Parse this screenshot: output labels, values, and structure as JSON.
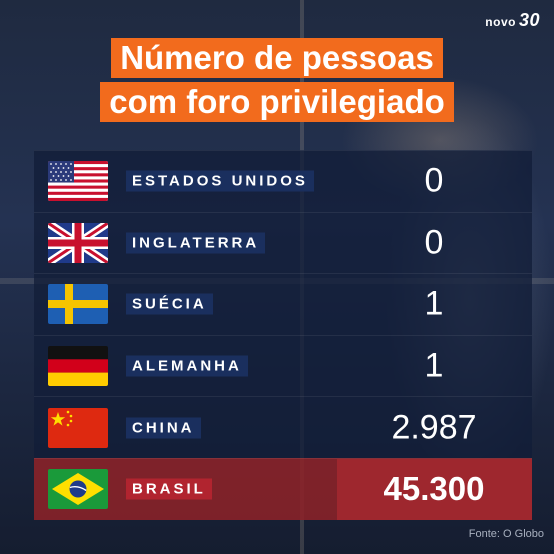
{
  "brand": {
    "logo_prefix": "novo",
    "logo_number": "30"
  },
  "title": {
    "line1": "Número de pessoas",
    "line2": "com foro privilegiado"
  },
  "rows": [
    {
      "country": "ESTADOS UNIDOS",
      "value": "0",
      "flag": "usa-flag"
    },
    {
      "country": "INGLATERRA",
      "value": "0",
      "flag": "uk-flag"
    },
    {
      "country": "SUÉCIA",
      "value": "1",
      "flag": "sweden-flag"
    },
    {
      "country": "ALEMANHA",
      "value": "1",
      "flag": "germany-flag"
    },
    {
      "country": "CHINA",
      "value": "2.987",
      "flag": "china-flag"
    },
    {
      "country": "BRASIL",
      "value": "45.300",
      "flag": "brazil-flag",
      "highlight": true
    }
  ],
  "source": "Fonte: O Globo",
  "colors": {
    "accent": "#f26b1d",
    "row_bg": "#121e38",
    "highlight_bg": "#8c2228",
    "label_bg": "#1a2f5e"
  }
}
